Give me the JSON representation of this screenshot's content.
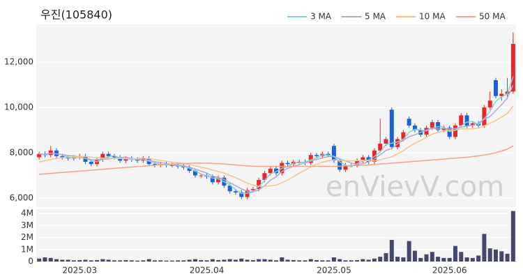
{
  "chart_data": [
    {
      "type": "candlestick",
      "title": "우진(105840)",
      "watermark": "enVievV.com",
      "up_color": "#e8262c",
      "down_color": "#1f5fd8",
      "legend": "top-right",
      "grid": true,
      "ylim": [
        5600,
        13660
      ],
      "yticks": [
        {
          "value": 6000,
          "label": "6,000"
        },
        {
          "value": 8000,
          "label": "8,000"
        },
        {
          "value": 10000,
          "label": "10,000"
        },
        {
          "value": 12000,
          "label": "12,000"
        }
      ],
      "open": [
        7800,
        7950,
        7900,
        8100,
        7850,
        7800,
        7750,
        7800,
        7850,
        7600,
        7500,
        7700,
        7950,
        7850,
        7800,
        7650,
        7750,
        7700,
        7650,
        7750,
        7500,
        7450,
        7500,
        7450,
        7450,
        7400,
        7350,
        7200,
        7000,
        7000,
        6950,
        6700,
        6900,
        6550,
        6300,
        6250,
        6050,
        6350,
        6400,
        6800,
        7100,
        7300,
        7100,
        7550,
        7500,
        7600,
        7600,
        7550,
        7900,
        7850,
        7950,
        8300,
        7650,
        7250,
        7450,
        7450,
        7650,
        7800,
        7600,
        8100,
        8400,
        9900,
        8250,
        8600,
        9500,
        9200,
        9000,
        8800,
        9100,
        9350,
        9000,
        9100,
        8700,
        9200,
        9650,
        9200,
        9300,
        9200,
        10000,
        11200,
        10500,
        10600,
        10700
      ],
      "high": [
        8050,
        8050,
        8300,
        8200,
        7950,
        7900,
        7900,
        7950,
        7950,
        7700,
        7800,
        8050,
        8050,
        7950,
        7900,
        7850,
        7850,
        7800,
        7850,
        7850,
        7600,
        7600,
        7600,
        7550,
        7550,
        7500,
        7450,
        7300,
        7100,
        7100,
        7050,
        7000,
        7000,
        6650,
        6400,
        6350,
        6450,
        6500,
        6900,
        7200,
        7400,
        7400,
        7650,
        7650,
        7700,
        7700,
        7700,
        8000,
        8000,
        8050,
        8050,
        8400,
        7750,
        7550,
        7550,
        7750,
        7900,
        7900,
        8200,
        9500,
        8700,
        10000,
        8700,
        9000,
        9600,
        9300,
        9100,
        9200,
        9450,
        9450,
        9200,
        9200,
        9300,
        9750,
        9750,
        9400,
        9400,
        10100,
        10700,
        11300,
        10800,
        11300,
        13300
      ],
      "low": [
        7700,
        7800,
        7800,
        7750,
        7700,
        7650,
        7650,
        7700,
        7500,
        7400,
        7400,
        7600,
        7750,
        7700,
        7550,
        7550,
        7600,
        7550,
        7550,
        7400,
        7350,
        7350,
        7350,
        7350,
        7300,
        7250,
        7100,
        6900,
        6900,
        6850,
        6600,
        6600,
        6450,
        6200,
        6150,
        5950,
        5950,
        6250,
        6300,
        6700,
        7000,
        7000,
        7000,
        7400,
        7400,
        7500,
        7450,
        7450,
        7750,
        7750,
        7800,
        7550,
        7150,
        7150,
        7350,
        7350,
        7550,
        7500,
        7500,
        8000,
        8300,
        8150,
        8150,
        8500,
        9100,
        8900,
        8700,
        8700,
        9000,
        8900,
        8900,
        8600,
        8600,
        9100,
        9100,
        9100,
        9100,
        9100,
        9900,
        10400,
        10300,
        10400,
        10600
      ],
      "close": [
        7950,
        7900,
        8100,
        7850,
        7800,
        7750,
        7800,
        7850,
        7600,
        7500,
        7700,
        7950,
        7850,
        7800,
        7650,
        7750,
        7700,
        7650,
        7750,
        7500,
        7450,
        7500,
        7450,
        7450,
        7400,
        7350,
        7200,
        7000,
        7000,
        6950,
        6700,
        6900,
        6550,
        6300,
        6250,
        6050,
        6350,
        6400,
        6800,
        7100,
        7300,
        7100,
        7550,
        7500,
        7600,
        7600,
        7550,
        7900,
        7850,
        7950,
        7900,
        7650,
        7250,
        7450,
        7450,
        7650,
        7800,
        7600,
        8100,
        8400,
        8600,
        8250,
        8600,
        8900,
        9200,
        9000,
        8800,
        9100,
        9350,
        9000,
        9100,
        8700,
        9200,
        9650,
        9200,
        9300,
        9200,
        10000,
        10300,
        10500,
        10600,
        10700,
        12800
      ],
      "series": [
        {
          "name": "3 MA",
          "color": "#7fd3d6",
          "values": [
            7950,
            7925,
            7983,
            7950,
            7917,
            7800,
            7783,
            7800,
            7750,
            7650,
            7600,
            7717,
            7833,
            7867,
            7767,
            7733,
            7700,
            7700,
            7700,
            7633,
            7567,
            7483,
            7467,
            7467,
            7433,
            7400,
            7317,
            7183,
            7067,
            6983,
            6883,
            6850,
            6717,
            6583,
            6367,
            6200,
            6217,
            6267,
            6517,
            6767,
            7067,
            7167,
            7317,
            7383,
            7550,
            7567,
            7583,
            7683,
            7767,
            7900,
            7900,
            7833,
            7600,
            7450,
            7383,
            7517,
            7633,
            7683,
            7833,
            8033,
            8367,
            8417,
            8483,
            8583,
            8900,
            9033,
            9000,
            8967,
            9083,
            9150,
            9150,
            8933,
            9000,
            9183,
            9350,
            9383,
            9233,
            9500,
            9833,
            10267,
            10467,
            10600,
            11367
          ]
        },
        {
          "name": "5 MA",
          "color": "#b3a7d1",
          "values": [
            7950,
            7925,
            7983,
            7950,
            7920,
            7880,
            7860,
            7810,
            7760,
            7700,
            7690,
            7720,
            7720,
            7760,
            7790,
            7800,
            7750,
            7710,
            7700,
            7670,
            7610,
            7570,
            7530,
            7470,
            7450,
            7430,
            7370,
            7280,
            7190,
            7100,
            6970,
            6910,
            6820,
            6680,
            6540,
            6410,
            6300,
            6270,
            6370,
            6540,
            6790,
            6940,
            7170,
            7310,
            7410,
            7470,
            7560,
            7630,
            7700,
            7770,
            7830,
            7850,
            7720,
            7640,
            7540,
            7490,
            7520,
            7590,
            7720,
            7910,
            8100,
            8190,
            8390,
            8550,
            8710,
            8790,
            8900,
            9000,
            9090,
            9050,
            9070,
            9050,
            9070,
            9130,
            9170,
            9210,
            9310,
            9470,
            9600,
            9860,
            10120,
            10420,
            10980
          ]
        },
        {
          "name": "10 MA",
          "color": "#f2c590",
          "values": [
            7600,
            7650,
            7700,
            7750,
            7780,
            7800,
            7820,
            7830,
            7830,
            7810,
            7780,
            7760,
            7760,
            7750,
            7740,
            7740,
            7730,
            7740,
            7760,
            7740,
            7700,
            7660,
            7620,
            7580,
            7560,
            7530,
            7480,
            7420,
            7360,
            7310,
            7240,
            7170,
            7100,
            7000,
            6900,
            6780,
            6660,
            6580,
            6520,
            6520,
            6540,
            6570,
            6680,
            6800,
            6940,
            7100,
            7230,
            7380,
            7490,
            7580,
            7650,
            7690,
            7660,
            7650,
            7640,
            7650,
            7670,
            7650,
            7640,
            7690,
            7760,
            7820,
            7950,
            8090,
            8270,
            8420,
            8540,
            8690,
            8820,
            8900,
            8950,
            8990,
            9000,
            9050,
            9050,
            9050,
            9090,
            9190,
            9300,
            9420,
            9570,
            9740,
            10060
          ]
        },
        {
          "name": "50 MA",
          "color": "#f3a389",
          "values": [
            7050,
            7070,
            7090,
            7110,
            7130,
            7150,
            7170,
            7190,
            7210,
            7230,
            7250,
            7270,
            7290,
            7310,
            7330,
            7350,
            7370,
            7390,
            7410,
            7430,
            7450,
            7470,
            7490,
            7500,
            7510,
            7520,
            7530,
            7540,
            7540,
            7540,
            7530,
            7520,
            7500,
            7480,
            7460,
            7440,
            7420,
            7410,
            7400,
            7400,
            7400,
            7400,
            7400,
            7400,
            7400,
            7400,
            7400,
            7400,
            7400,
            7400,
            7400,
            7400,
            7410,
            7420,
            7430,
            7440,
            7450,
            7460,
            7480,
            7500,
            7520,
            7540,
            7560,
            7580,
            7600,
            7620,
            7640,
            7660,
            7680,
            7700,
            7720,
            7740,
            7760,
            7780,
            7800,
            7830,
            7860,
            7900,
            7950,
            8000,
            8080,
            8160,
            8300
          ]
        }
      ]
    },
    {
      "type": "bar",
      "color": "#45476c",
      "categories": [
        null,
        null,
        null,
        null,
        null,
        null,
        null,
        "2025.03",
        null,
        null,
        null,
        null,
        null,
        null,
        null,
        null,
        null,
        null,
        null,
        null,
        null,
        null,
        null,
        null,
        null,
        null,
        null,
        null,
        null,
        "2025.04",
        null,
        null,
        null,
        null,
        null,
        null,
        null,
        null,
        null,
        null,
        null,
        null,
        null,
        null,
        null,
        null,
        null,
        null,
        null,
        null,
        null,
        "2025.05",
        null,
        null,
        null,
        null,
        null,
        null,
        null,
        null,
        null,
        null,
        null,
        null,
        null,
        null,
        null,
        null,
        null,
        null,
        null,
        "2025.06",
        null,
        null,
        null,
        null,
        null,
        null,
        null,
        null,
        null,
        null,
        null
      ],
      "values": [
        250000,
        350000,
        300000,
        200000,
        150000,
        150000,
        100000,
        120000,
        150000,
        100000,
        120000,
        200000,
        150000,
        100000,
        100000,
        120000,
        100000,
        80000,
        100000,
        200000,
        100000,
        100000,
        80000,
        80000,
        100000,
        100000,
        150000,
        200000,
        120000,
        100000,
        200000,
        120000,
        150000,
        200000,
        150000,
        250000,
        150000,
        120000,
        200000,
        200000,
        150000,
        100000,
        350000,
        150000,
        120000,
        100000,
        100000,
        200000,
        120000,
        100000,
        100000,
        350000,
        200000,
        100000,
        100000,
        120000,
        200000,
        150000,
        250000,
        400000,
        700000,
        1800000,
        400000,
        350000,
        1700000,
        900000,
        300000,
        600000,
        800000,
        400000,
        300000,
        300000,
        1300000,
        800000,
        350000,
        300000,
        500000,
        2300000,
        1100000,
        1000000,
        850000,
        650000,
        4200000
      ],
      "ylim": [
        0,
        4350000
      ],
      "yticks": [
        0,
        {
          "value": 1000000,
          "label": "1M"
        },
        {
          "value": 2000000,
          "label": "2M"
        },
        {
          "value": 3000000,
          "label": "3M"
        },
        {
          "value": 4000000,
          "label": "4M"
        }
      ]
    }
  ]
}
